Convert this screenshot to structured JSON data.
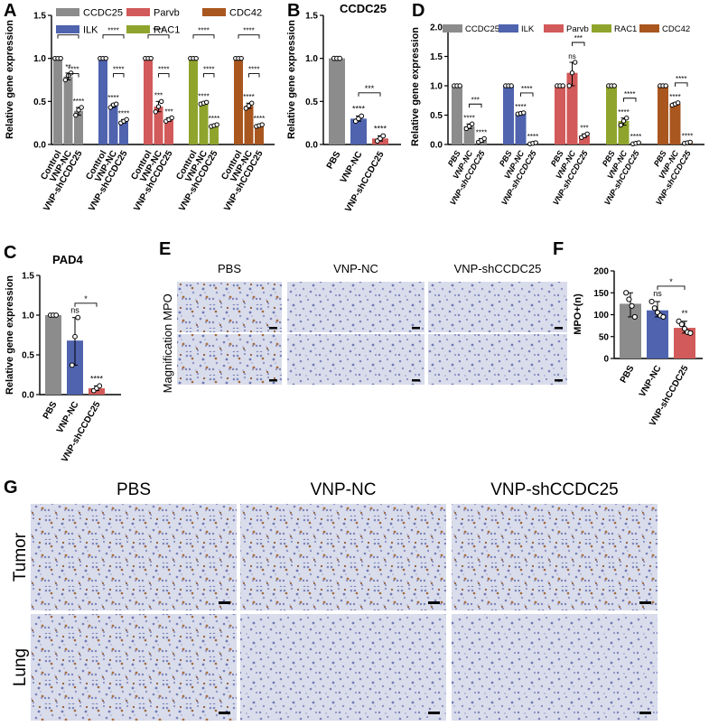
{
  "panel_labels": {
    "A": "A",
    "B": "B",
    "C": "C",
    "D": "D",
    "E": "E",
    "F": "F",
    "G": "G"
  },
  "colors": {
    "CCDC25": "#8c8c8c",
    "ILK": "#4f63ae",
    "Parvb": "#d25a5a",
    "RAC1": "#8fa42d",
    "CDC42": "#a9571f",
    "PBS": "#8c8c8c",
    "VNP-NC": "#4f63ae",
    "VNP-shCCDC25": "#d25a5a"
  },
  "chart_data": [
    {
      "id": "A",
      "type": "bar",
      "title": "",
      "ylabel": "Relative gene expression",
      "ylim": [
        0,
        1.5
      ],
      "yticks": [
        "0.0",
        "0.5",
        "1.0",
        "1.5"
      ],
      "groups": [
        "CCDC25",
        "ILK",
        "Parvb",
        "RAC1",
        "CDC42"
      ],
      "categories": [
        "Control",
        "VNP-NC",
        "VNP-shCCDC25"
      ],
      "values": [
        [
          1.0,
          0.79,
          0.39
        ],
        [
          1.0,
          0.45,
          0.27
        ],
        [
          1.0,
          0.44,
          0.29
        ],
        [
          1.0,
          0.48,
          0.22
        ],
        [
          1.0,
          0.45,
          0.22
        ]
      ],
      "points": [
        [
          [
            1,
            1,
            1
          ],
          [
            0.75,
            0.8,
            0.83
          ],
          [
            0.34,
            0.4,
            0.43
          ]
        ],
        [
          [
            1,
            1,
            1
          ],
          [
            0.43,
            0.46,
            0.47
          ],
          [
            0.25,
            0.27,
            0.29
          ]
        ],
        [
          [
            1,
            1,
            1
          ],
          [
            0.38,
            0.44,
            0.5
          ],
          [
            0.27,
            0.29,
            0.31
          ]
        ],
        [
          [
            1,
            1,
            1
          ],
          [
            0.47,
            0.48,
            0.49
          ],
          [
            0.21,
            0.22,
            0.23
          ]
        ],
        [
          [
            1,
            1,
            1
          ],
          [
            0.42,
            0.45,
            0.48
          ],
          [
            0.21,
            0.22,
            0.23
          ]
        ]
      ],
      "sig_bar": [
        [
          "**",
          "****"
        ],
        [
          "****",
          "****"
        ],
        [
          "***",
          "***"
        ],
        [
          "****",
          "****"
        ],
        [
          "****",
          "****"
        ]
      ],
      "sig_brackets": [
        [
          "****",
          "****"
        ],
        [
          "****",
          "****"
        ],
        [
          "****",
          "****"
        ],
        [
          "****",
          "****"
        ],
        [
          "****",
          "****"
        ]
      ],
      "legend": [
        [
          "CCDC25",
          "ILK"
        ],
        [
          "Parvb",
          "RAC1"
        ],
        [
          "CDC42"
        ]
      ]
    },
    {
      "id": "B",
      "type": "bar",
      "title": "CCDC25",
      "ylabel": "Relative gene expression",
      "ylim": [
        0,
        1.5
      ],
      "yticks": [
        "0.0",
        "0.5",
        "1.0",
        "1.5"
      ],
      "categories": [
        "PBS",
        "VNP-NC",
        "VNP-shCCDC25"
      ],
      "values": [
        1.0,
        0.3,
        0.07
      ],
      "points": [
        [
          1,
          1,
          1
        ],
        [
          0.27,
          0.3,
          0.33
        ],
        [
          0.04,
          0.07,
          0.1
        ]
      ],
      "sig_bar": [
        "",
        "****",
        "****"
      ],
      "sig_brackets": [
        "***"
      ]
    },
    {
      "id": "C",
      "type": "bar",
      "title": "PAD4",
      "ylabel": "Relative gene expression",
      "ylim": [
        0,
        1.5
      ],
      "yticks": [
        "0.0",
        "0.5",
        "1.0",
        "1.5"
      ],
      "categories": [
        "PBS",
        "VNP-NC",
        "VNP-shCCDC25"
      ],
      "values": [
        1.0,
        0.68,
        0.08
      ],
      "points": [
        [
          1,
          1,
          1
        ],
        [
          0.37,
          0.73,
          0.97
        ],
        [
          0.05,
          0.08,
          0.11
        ]
      ],
      "sig_bar": [
        "",
        "ns",
        "****"
      ],
      "sig_brackets": [
        "*"
      ]
    },
    {
      "id": "D",
      "type": "bar",
      "title": "",
      "ylabel": "Relative gene expression",
      "ylim": [
        0,
        2.0
      ],
      "yticks": [
        "0.0",
        "0.5",
        "1.0",
        "1.5",
        "2.0"
      ],
      "groups": [
        "CCDC25",
        "ILK",
        "Parvb",
        "RAC1",
        "CDC42"
      ],
      "categories": [
        "PBS",
        "VNP-NC",
        "VNP-shCCDC25"
      ],
      "values": [
        [
          1.0,
          0.31,
          0.07
        ],
        [
          1.0,
          0.53,
          0.02
        ],
        [
          1.0,
          1.22,
          0.15
        ],
        [
          1.0,
          0.4,
          0.02
        ],
        [
          1.0,
          0.69,
          0.03
        ]
      ],
      "points": [
        [
          [
            1,
            1,
            1
          ],
          [
            0.27,
            0.31,
            0.35
          ],
          [
            0.04,
            0.07,
            0.1
          ]
        ],
        [
          [
            1,
            1,
            1
          ],
          [
            0.52,
            0.53,
            0.54
          ],
          [
            0.01,
            0.02,
            0.03
          ]
        ],
        [
          [
            1,
            1,
            1
          ],
          [
            1.0,
            1.22,
            1.4
          ],
          [
            0.12,
            0.15,
            0.18
          ]
        ],
        [
          [
            1,
            1,
            1
          ],
          [
            0.33,
            0.4,
            0.45
          ],
          [
            0.01,
            0.02,
            0.03
          ]
        ],
        [
          [
            1,
            1,
            1
          ],
          [
            0.67,
            0.69,
            0.71
          ],
          [
            0.02,
            0.03,
            0.04
          ]
        ]
      ],
      "sig_bar": [
        [
          "****",
          "****"
        ],
        [
          "****",
          "****"
        ],
        [
          "ns",
          "***"
        ],
        [
          "****",
          "****"
        ],
        [
          "****",
          "****"
        ]
      ],
      "sig_brackets": [
        "***",
        "****",
        "***",
        "****",
        "****"
      ],
      "legend": [
        "CCDC25",
        "ILK",
        "Parvb",
        "RAC1",
        "CDC42"
      ]
    },
    {
      "id": "F",
      "type": "bar",
      "title": "",
      "ylabel": "MPO+(n)",
      "ylim": [
        0,
        200
      ],
      "yticks": [
        "0",
        "50",
        "100",
        "150",
        "200"
      ],
      "categories": [
        "PBS",
        "VNP-NC",
        "VNP-shCCDC25"
      ],
      "values": [
        125,
        110,
        70
      ],
      "points": [
        [
          150,
          135,
          120,
          95
        ],
        [
          130,
          115,
          105,
          98,
          95
        ],
        [
          85,
          78,
          68,
          60,
          58
        ]
      ],
      "sig_bar": [
        "",
        "ns",
        "**"
      ],
      "sig_brackets": [
        "*"
      ]
    }
  ],
  "panel_E": {
    "col_titles": [
      "PBS",
      "VNP-NC",
      "VNP-shCCDC25"
    ],
    "row_titles": [
      "MPO",
      "Magnification"
    ]
  },
  "panel_G": {
    "col_titles": [
      "PBS",
      "VNP-NC",
      "VNP-shCCDC25"
    ],
    "row_titles": [
      "Tumor",
      "Lung"
    ]
  }
}
